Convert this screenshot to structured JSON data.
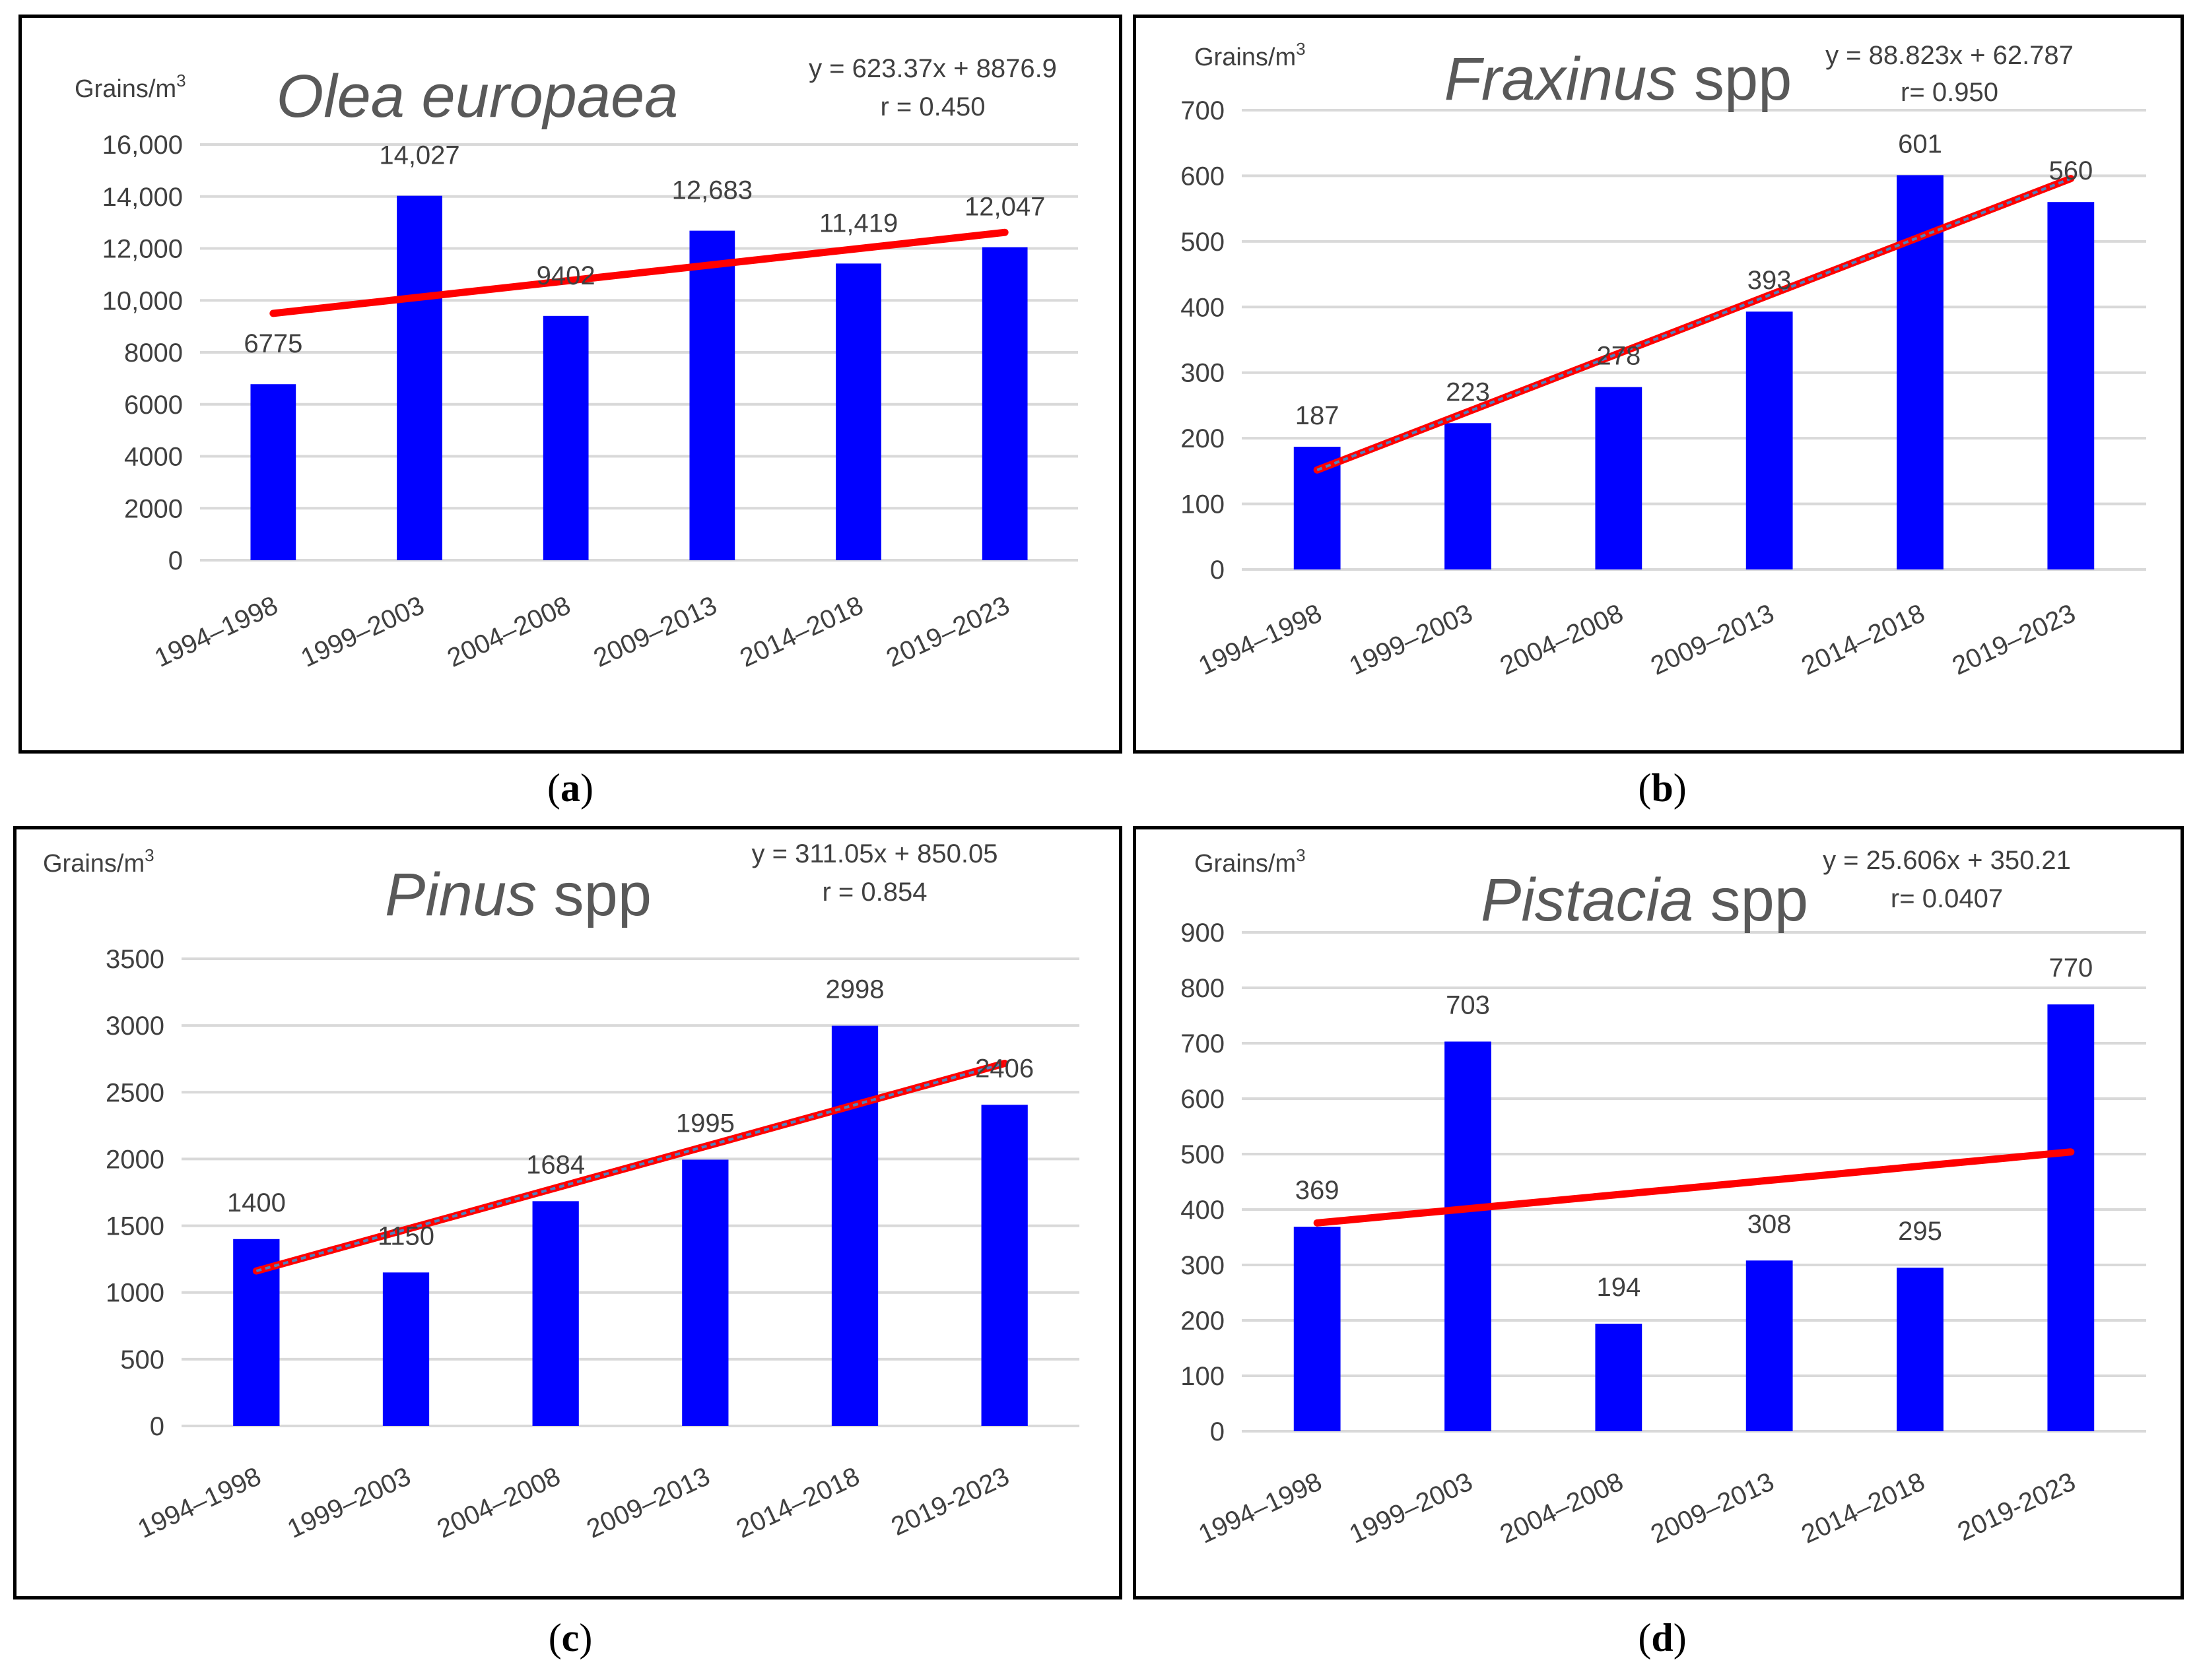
{
  "chart_data": [
    {
      "type": "bar",
      "panel_label": "a",
      "title_italic": "Olea europaea",
      "title_plain": "",
      "ylabel": "Grains/m",
      "ylabel_sup": "3",
      "equation": "y = 623.37x + 8876.9",
      "r_text": "r = 0.450",
      "categories": [
        "1994–1998",
        "1999–2003",
        "2004–2008",
        "2009–2013",
        "2014–2018",
        "2019–2023"
      ],
      "values": [
        6775,
        14027,
        9402,
        12683,
        11419,
        12047
      ],
      "value_labels": [
        "6775",
        "14,027",
        "9402",
        "12,683",
        "11,419",
        "12,047"
      ],
      "ylim": [
        0,
        16000
      ],
      "yticks": [
        0,
        2000,
        4000,
        6000,
        8000,
        10000,
        12000,
        14000,
        16000
      ],
      "ytick_labels": [
        "0",
        "2000",
        "4000",
        "6000",
        "8000",
        "10,000",
        "12,000",
        "14,000",
        "16,000"
      ],
      "trendline": {
        "slope": 623.37,
        "intercept": 8876.9,
        "style": "solid"
      },
      "bar_color": "#0000ff",
      "trend_color": "#ff0000",
      "trend_dash_color": "#ff0000"
    },
    {
      "type": "bar",
      "panel_label": "b",
      "title_italic": "Fraxinus",
      "title_plain": " spp",
      "ylabel": "Grains/m",
      "ylabel_sup": "3",
      "equation": "y = 88.823x + 62.787",
      "r_text": "r= 0.950",
      "categories": [
        "1994–1998",
        "1999–2003",
        "2004–2008",
        "2009–2013",
        "2014–2018",
        "2019–2023"
      ],
      "values": [
        187,
        223,
        278,
        393,
        601,
        560
      ],
      "value_labels": [
        "187",
        "223",
        "278",
        "393",
        "601",
        "560"
      ],
      "ylim": [
        0,
        700
      ],
      "yticks": [
        0,
        100,
        200,
        300,
        400,
        500,
        600,
        700
      ],
      "ytick_labels": [
        "0",
        "100",
        "200",
        "300",
        "400",
        "500",
        "600",
        "700"
      ],
      "trendline": {
        "slope": 88.823,
        "intercept": 62.787,
        "style": "dashed"
      },
      "bar_color": "#0000ff",
      "trend_color": "#ff0000",
      "trend_dash_color": "#4f81bd"
    },
    {
      "type": "bar",
      "panel_label": "c",
      "title_italic": "Pinus",
      "title_plain": " spp",
      "ylabel": "Grains/m",
      "ylabel_sup": "3",
      "equation": "y = 311.05x + 850.05",
      "r_text": "r = 0.854",
      "categories": [
        "1994–1998",
        "1999–2003",
        "2004–2008",
        "2009–2013",
        "2014–2018",
        "2019-2023"
      ],
      "values": [
        1400,
        1150,
        1684,
        1995,
        2998,
        2406
      ],
      "value_labels": [
        "1400",
        "1150",
        "1684",
        "1995",
        "2998",
        "2406"
      ],
      "ylim": [
        0,
        3500
      ],
      "yticks": [
        0,
        500,
        1000,
        1500,
        2000,
        2500,
        3000,
        3500
      ],
      "ytick_labels": [
        "0",
        "500",
        "1000",
        "1500",
        "2000",
        "2500",
        "3000",
        "3500"
      ],
      "trendline": {
        "slope": 311.05,
        "intercept": 850.05,
        "style": "dashed"
      },
      "bar_color": "#0000ff",
      "trend_color": "#ff0000",
      "trend_dash_color": "#4f81bd"
    },
    {
      "type": "bar",
      "panel_label": "d",
      "title_italic": "Pistacia",
      "title_plain": " spp",
      "ylabel": "Grains/m",
      "ylabel_sup": "3",
      "equation": "y = 25.606x + 350.21",
      "r_text": "r= 0.0407",
      "categories": [
        "1994–1998",
        "1999–2003",
        "2004–2008",
        "2009–2013",
        "2014–2018",
        "2019-2023"
      ],
      "values": [
        369,
        703,
        194,
        308,
        295,
        770
      ],
      "value_labels": [
        "369",
        "703",
        "194",
        "308",
        "295",
        "770"
      ],
      "ylim": [
        0,
        900
      ],
      "yticks": [
        0,
        100,
        200,
        300,
        400,
        500,
        600,
        700,
        800,
        900
      ],
      "ytick_labels": [
        "0",
        "100",
        "200",
        "300",
        "400",
        "500",
        "600",
        "700",
        "800",
        "900"
      ],
      "trendline": {
        "slope": 25.606,
        "intercept": 350.21,
        "style": "solid"
      },
      "bar_color": "#0000ff",
      "trend_color": "#ff0000",
      "trend_dash_color": "#ff0000"
    }
  ],
  "captions": [
    "(a)",
    "(b)",
    "(c)",
    "(d)"
  ]
}
